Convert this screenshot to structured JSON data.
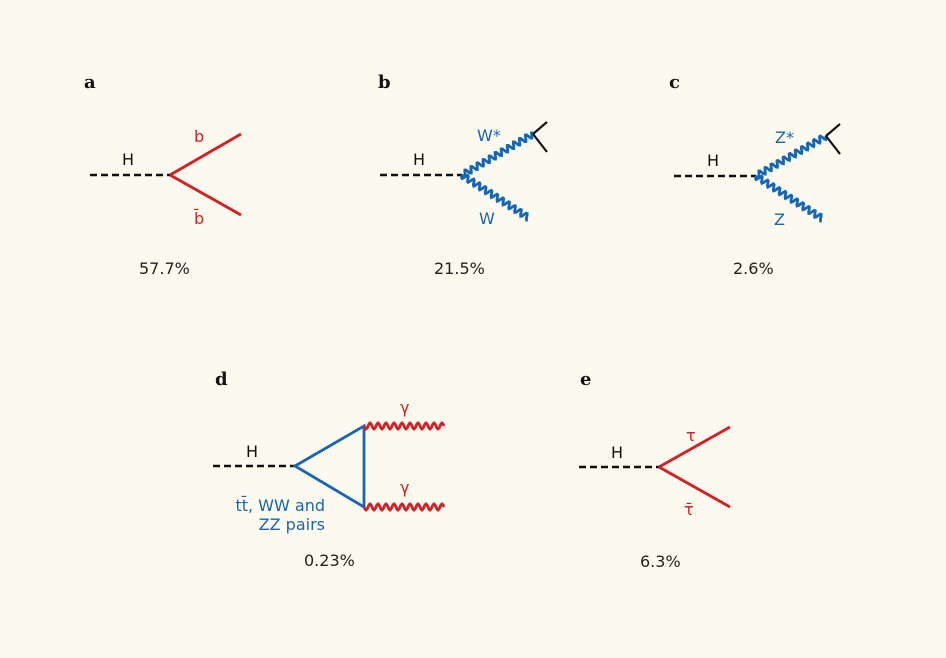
{
  "colors": {
    "red": "#d81e25",
    "blue": "#1766b4",
    "black": "#111111",
    "background": "#fcf9ee"
  },
  "panels": [
    {
      "letter": "a",
      "higgs": "H",
      "upper": "b",
      "lower": "b̄",
      "branching": "57.7%"
    },
    {
      "letter": "b",
      "higgs": "H",
      "upper": "W*",
      "lower": "W",
      "branching": "21.5%"
    },
    {
      "letter": "c",
      "higgs": "H",
      "upper": "Z*",
      "lower": "Z",
      "branching": "2.6%"
    },
    {
      "letter": "d",
      "higgs": "H",
      "upper": "γ",
      "lower": "γ",
      "loop_line1": "tt̄, WW and",
      "loop_line2": "ZZ pairs",
      "branching": "0.23%"
    },
    {
      "letter": "e",
      "higgs": "H",
      "upper": "τ",
      "lower": "τ̄",
      "branching": "6.3%"
    }
  ]
}
